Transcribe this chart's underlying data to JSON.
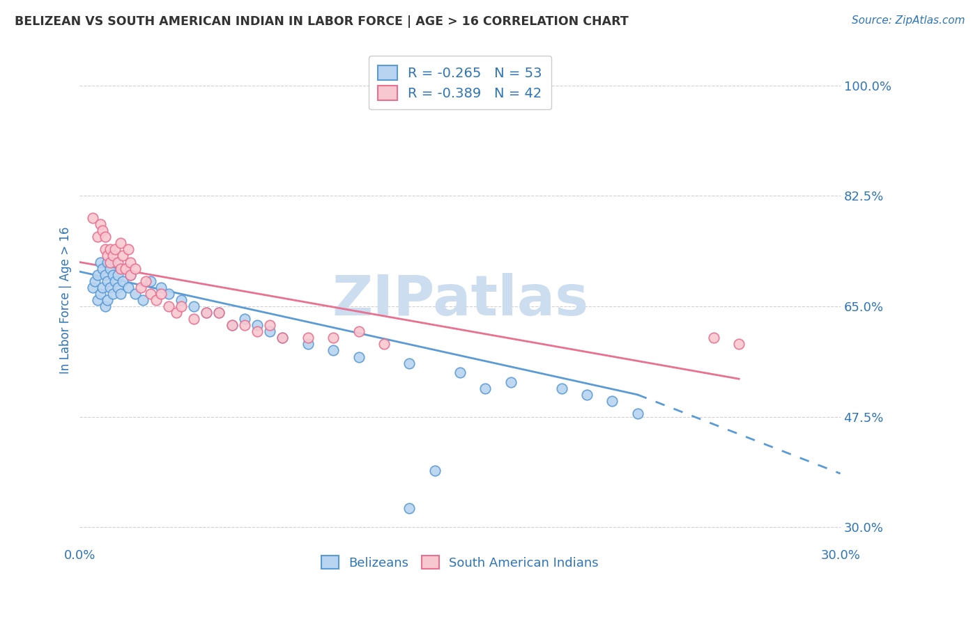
{
  "title": "BELIZEAN VS SOUTH AMERICAN INDIAN IN LABOR FORCE | AGE > 16 CORRELATION CHART",
  "source_text": "Source: ZipAtlas.com",
  "ylabel": "In Labor Force | Age > 16",
  "xlim": [
    0.0,
    0.3
  ],
  "ylim": [
    0.27,
    1.05
  ],
  "ytick_labels": [
    "100.0%",
    "82.5%",
    "65.0%",
    "47.5%",
    "30.0%"
  ],
  "ytick_values": [
    1.0,
    0.825,
    0.65,
    0.475,
    0.3
  ],
  "xtick_labels": [
    "0.0%",
    "30.0%"
  ],
  "xtick_values": [
    0.0,
    0.3
  ],
  "grid_color": "#d0d0d0",
  "background_color": "#ffffff",
  "belizean_color": "#b8d4f0",
  "belizean_edge_color": "#5b9bd5",
  "sai_color": "#f8c8d0",
  "sai_edge_color": "#e87090",
  "belizean_R": -0.265,
  "belizean_N": 53,
  "sai_R": -0.389,
  "sai_N": 42,
  "text_color": "#2e75b6",
  "title_color": "#333333",
  "watermark": "ZIPatlas",
  "watermark_color": "#ccddf0",
  "belizean_x": [
    0.005,
    0.006,
    0.007,
    0.007,
    0.008,
    0.008,
    0.009,
    0.009,
    0.01,
    0.01,
    0.011,
    0.011,
    0.011,
    0.012,
    0.012,
    0.013,
    0.013,
    0.014,
    0.014,
    0.015,
    0.015,
    0.016,
    0.017,
    0.018,
    0.019,
    0.02,
    0.022,
    0.025,
    0.028,
    0.032,
    0.035,
    0.04,
    0.045,
    0.05,
    0.055,
    0.06,
    0.065,
    0.07,
    0.075,
    0.08,
    0.09,
    0.1,
    0.11,
    0.13,
    0.15,
    0.17,
    0.19,
    0.2,
    0.21,
    0.22,
    0.14,
    0.16,
    0.13
  ],
  "belizean_y": [
    0.68,
    0.69,
    0.7,
    0.66,
    0.72,
    0.67,
    0.71,
    0.68,
    0.7,
    0.65,
    0.72,
    0.69,
    0.66,
    0.68,
    0.71,
    0.7,
    0.67,
    0.69,
    0.72,
    0.68,
    0.7,
    0.67,
    0.69,
    0.71,
    0.68,
    0.7,
    0.67,
    0.66,
    0.69,
    0.68,
    0.67,
    0.66,
    0.65,
    0.64,
    0.64,
    0.62,
    0.63,
    0.62,
    0.61,
    0.6,
    0.59,
    0.58,
    0.57,
    0.56,
    0.545,
    0.53,
    0.52,
    0.51,
    0.5,
    0.48,
    0.39,
    0.52,
    0.33
  ],
  "sai_x": [
    0.005,
    0.007,
    0.008,
    0.009,
    0.01,
    0.01,
    0.011,
    0.012,
    0.012,
    0.013,
    0.014,
    0.015,
    0.016,
    0.016,
    0.017,
    0.018,
    0.019,
    0.02,
    0.02,
    0.022,
    0.024,
    0.026,
    0.028,
    0.03,
    0.032,
    0.035,
    0.038,
    0.04,
    0.045,
    0.05,
    0.055,
    0.06,
    0.065,
    0.07,
    0.075,
    0.08,
    0.09,
    0.1,
    0.11,
    0.12,
    0.25,
    0.26
  ],
  "sai_y": [
    0.79,
    0.76,
    0.78,
    0.77,
    0.76,
    0.74,
    0.73,
    0.74,
    0.72,
    0.73,
    0.74,
    0.72,
    0.75,
    0.71,
    0.73,
    0.71,
    0.74,
    0.72,
    0.7,
    0.71,
    0.68,
    0.69,
    0.67,
    0.66,
    0.67,
    0.65,
    0.64,
    0.65,
    0.63,
    0.64,
    0.64,
    0.62,
    0.62,
    0.61,
    0.62,
    0.6,
    0.6,
    0.6,
    0.61,
    0.59,
    0.6,
    0.59
  ]
}
